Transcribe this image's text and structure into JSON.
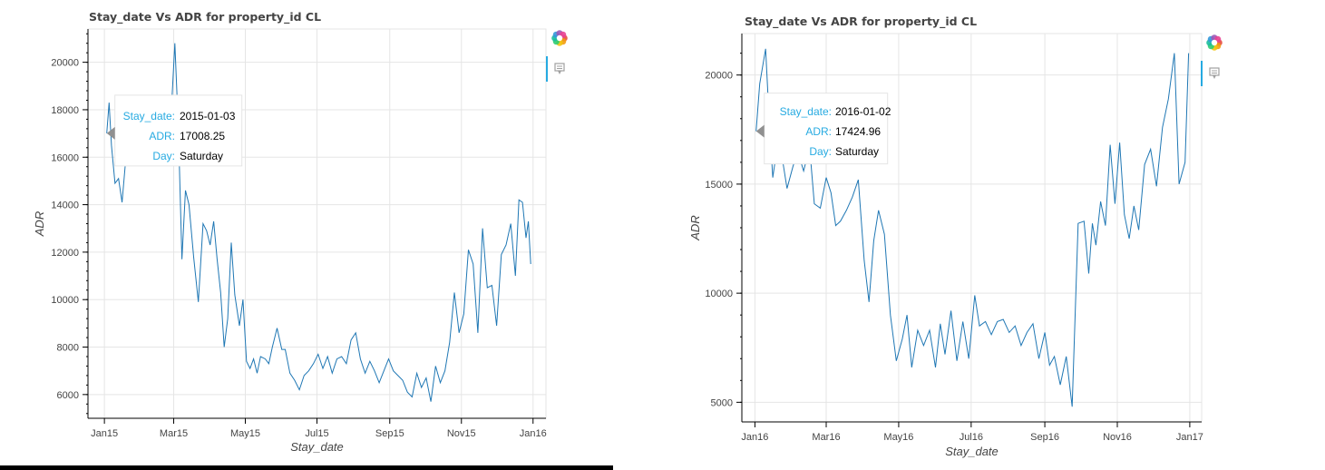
{
  "colors": {
    "series": "#1f77b4",
    "tooltip_key": "#26aae1",
    "toolbar_active": "#26aae1",
    "grid": "#e5e5e5"
  },
  "toolbar": {
    "icons": [
      "bokeh-logo-icon",
      "hover-tool-icon"
    ]
  },
  "chart_data": [
    {
      "type": "line",
      "title": "Stay_date Vs ADR for property_id CL",
      "xlabel": "Stay_date",
      "ylabel": "ADR",
      "grid": true,
      "xlim": [
        "2014-12-18",
        "2016-01-12"
      ],
      "ylim": [
        5000,
        21400
      ],
      "x_ticks": [
        {
          "date": "2015-01-01",
          "label": "Jan15"
        },
        {
          "date": "2015-03-01",
          "label": "Mar15"
        },
        {
          "date": "2015-05-01",
          "label": "May15"
        },
        {
          "date": "2015-07-01",
          "label": "Jul15"
        },
        {
          "date": "2015-09-01",
          "label": "Sep15"
        },
        {
          "date": "2015-11-01",
          "label": "Nov15"
        },
        {
          "date": "2016-01-01",
          "label": "Jan16"
        }
      ],
      "y_ticks": [
        {
          "value": 6000,
          "label": "6000"
        },
        {
          "value": 8000,
          "label": "8000"
        },
        {
          "value": 10000,
          "label": "10000"
        },
        {
          "value": 12000,
          "label": "12000"
        },
        {
          "value": 14000,
          "label": "14000"
        },
        {
          "value": 16000,
          "label": "16000"
        },
        {
          "value": 18000,
          "label": "18000"
        },
        {
          "value": 20000,
          "label": "20000"
        }
      ],
      "tooltip": {
        "pointer": {
          "x": "2015-01-03",
          "y": 17008.25
        },
        "rows": [
          {
            "key": "Stay_date:",
            "value": "2015-01-03"
          },
          {
            "key": "ADR:",
            "value": "17008.25"
          },
          {
            "key": "Day:",
            "value": "Saturday"
          }
        ]
      },
      "x": [
        "2015-01-03",
        "2015-01-05",
        "2015-01-07",
        "2015-01-10",
        "2015-01-13",
        "2015-01-16",
        "2015-01-19",
        "2015-01-22",
        "2015-01-26",
        "2015-01-29",
        "2015-02-02",
        "2015-02-05",
        "2015-02-09",
        "2015-02-12",
        "2015-02-16",
        "2015-02-19",
        "2015-02-23",
        "2015-02-26",
        "2015-03-02",
        "2015-03-05",
        "2015-03-08",
        "2015-03-11",
        "2015-03-14",
        "2015-03-18",
        "2015-03-22",
        "2015-03-26",
        "2015-03-29",
        "2015-04-01",
        "2015-04-04",
        "2015-04-07",
        "2015-04-10",
        "2015-04-13",
        "2015-04-16",
        "2015-04-19",
        "2015-04-22",
        "2015-04-26",
        "2015-04-29",
        "2015-05-02",
        "2015-05-05",
        "2015-05-08",
        "2015-05-11",
        "2015-05-14",
        "2015-05-18",
        "2015-05-21",
        "2015-05-24",
        "2015-05-28",
        "2015-06-01",
        "2015-06-04",
        "2015-06-08",
        "2015-06-12",
        "2015-06-16",
        "2015-06-20",
        "2015-06-24",
        "2015-06-28",
        "2015-07-02",
        "2015-07-06",
        "2015-07-10",
        "2015-07-14",
        "2015-07-18",
        "2015-07-22",
        "2015-07-26",
        "2015-07-30",
        "2015-08-03",
        "2015-08-07",
        "2015-08-11",
        "2015-08-15",
        "2015-08-19",
        "2015-08-23",
        "2015-08-27",
        "2015-08-31",
        "2015-09-04",
        "2015-09-08",
        "2015-09-12",
        "2015-09-16",
        "2015-09-20",
        "2015-09-24",
        "2015-09-28",
        "2015-10-02",
        "2015-10-06",
        "2015-10-10",
        "2015-10-14",
        "2015-10-18",
        "2015-10-22",
        "2015-10-26",
        "2015-10-30",
        "2015-11-03",
        "2015-11-07",
        "2015-11-11",
        "2015-11-15",
        "2015-11-19",
        "2015-11-23",
        "2015-11-27",
        "2015-12-01",
        "2015-12-05",
        "2015-12-09",
        "2015-12-13",
        "2015-12-17",
        "2015-12-20",
        "2015-12-23",
        "2015-12-26",
        "2015-12-28",
        "2015-12-30"
      ],
      "y": [
        17008,
        18300,
        16500,
        14900,
        15100,
        14100,
        15800,
        16200,
        16500,
        16000,
        16200,
        16700,
        17200,
        16800,
        17100,
        16600,
        17400,
        17000,
        20800,
        17200,
        11700,
        14600,
        14000,
        11800,
        9900,
        13200,
        12900,
        12300,
        13300,
        11700,
        10300,
        8000,
        9200,
        12400,
        10200,
        8900,
        10000,
        7400,
        7100,
        7500,
        6900,
        7600,
        7500,
        7300,
        8000,
        8800,
        7900,
        7900,
        6900,
        6600,
        6200,
        6800,
        7000,
        7300,
        7700,
        7100,
        7600,
        6900,
        7500,
        7600,
        7300,
        8300,
        8600,
        7500,
        6900,
        7400,
        7000,
        6500,
        7000,
        7500,
        7000,
        6800,
        6600,
        6100,
        5900,
        6900,
        6300,
        6700,
        5700,
        7200,
        6500,
        7000,
        8200,
        10300,
        8600,
        9400,
        12100,
        11500,
        8600,
        13000,
        10500,
        10600,
        8900,
        11900,
        12300,
        13200,
        11000,
        14200,
        14100,
        12600,
        13300,
        11500
      ]
    },
    {
      "type": "line",
      "title": "Stay_date Vs ADR for property_id CL",
      "xlabel": "Stay_date",
      "ylabel": "ADR",
      "grid": true,
      "xlim": [
        "2015-12-21",
        "2017-01-11"
      ],
      "ylim": [
        4100,
        21900
      ],
      "x_ticks": [
        {
          "date": "2016-01-01",
          "label": "Jan16"
        },
        {
          "date": "2016-03-01",
          "label": "Mar16"
        },
        {
          "date": "2016-05-01",
          "label": "May16"
        },
        {
          "date": "2016-07-01",
          "label": "Jul16"
        },
        {
          "date": "2016-09-01",
          "label": "Sep16"
        },
        {
          "date": "2016-11-01",
          "label": "Nov16"
        },
        {
          "date": "2017-01-01",
          "label": "Jan17"
        }
      ],
      "y_ticks": [
        {
          "value": 5000,
          "label": "5000"
        },
        {
          "value": 10000,
          "label": "10000"
        },
        {
          "value": 15000,
          "label": "15000"
        },
        {
          "value": 20000,
          "label": "20000"
        }
      ],
      "tooltip": {
        "pointer": {
          "x": "2016-01-02",
          "y": 17424.96
        },
        "rows": [
          {
            "key": "Stay_date:",
            "value": "2016-01-02"
          },
          {
            "key": "ADR:",
            "value": "17424.96"
          },
          {
            "key": "Day:",
            "value": "Saturday"
          }
        ]
      },
      "x": [
        "2016-01-02",
        "2016-01-05",
        "2016-01-10",
        "2016-01-13",
        "2016-01-16",
        "2016-01-20",
        "2016-01-24",
        "2016-01-28",
        "2016-02-02",
        "2016-02-06",
        "2016-02-11",
        "2016-02-16",
        "2016-02-20",
        "2016-02-25",
        "2016-03-01",
        "2016-03-05",
        "2016-03-09",
        "2016-03-13",
        "2016-03-18",
        "2016-03-23",
        "2016-03-28",
        "2016-04-02",
        "2016-04-06",
        "2016-04-10",
        "2016-04-14",
        "2016-04-19",
        "2016-04-24",
        "2016-04-29",
        "2016-05-04",
        "2016-05-08",
        "2016-05-12",
        "2016-05-17",
        "2016-05-22",
        "2016-05-27",
        "2016-06-01",
        "2016-06-05",
        "2016-06-09",
        "2016-06-14",
        "2016-06-19",
        "2016-06-24",
        "2016-06-29",
        "2016-07-04",
        "2016-07-08",
        "2016-07-13",
        "2016-07-18",
        "2016-07-23",
        "2016-07-28",
        "2016-08-02",
        "2016-08-07",
        "2016-08-12",
        "2016-08-17",
        "2016-08-22",
        "2016-08-27",
        "2016-09-01",
        "2016-09-05",
        "2016-09-09",
        "2016-09-14",
        "2016-09-19",
        "2016-09-24",
        "2016-09-29",
        "2016-10-04",
        "2016-10-08",
        "2016-10-11",
        "2016-10-14",
        "2016-10-18",
        "2016-10-22",
        "2016-10-26",
        "2016-10-30",
        "2016-11-03",
        "2016-11-07",
        "2016-11-11",
        "2016-11-15",
        "2016-11-19",
        "2016-11-24",
        "2016-11-29",
        "2016-12-04",
        "2016-12-09",
        "2016-12-14",
        "2016-12-19",
        "2016-12-23",
        "2016-12-28",
        "2016-12-31"
      ],
      "y": [
        17425,
        19600,
        21200,
        18000,
        15300,
        16800,
        16200,
        14800,
        15800,
        16500,
        15600,
        16700,
        14100,
        13900,
        15300,
        14600,
        13100,
        13300,
        13800,
        14400,
        15200,
        11500,
        9600,
        12400,
        13800,
        12700,
        9000,
        6900,
        7900,
        9000,
        6600,
        8300,
        7600,
        8300,
        6600,
        8600,
        7200,
        9200,
        6900,
        8700,
        7000,
        9900,
        8500,
        8700,
        8100,
        8700,
        8800,
        8200,
        8500,
        7600,
        8200,
        8600,
        7000,
        8200,
        6700,
        7100,
        5800,
        7100,
        4800,
        13200,
        13300,
        10900,
        13200,
        12200,
        14200,
        13100,
        16800,
        14100,
        16900,
        13600,
        12500,
        14000,
        12900,
        15900,
        16600,
        14900,
        17600,
        18900,
        21000,
        15000,
        16000,
        21000
      ]
    }
  ]
}
